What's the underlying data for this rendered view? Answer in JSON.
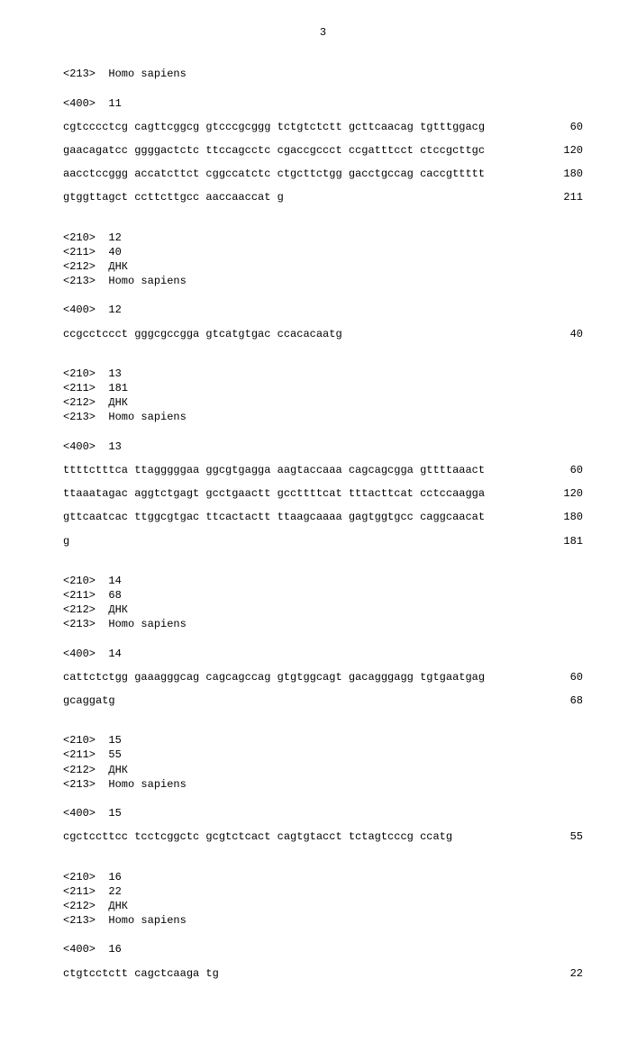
{
  "page_number": "3",
  "entries": [
    {
      "headers": [
        "<213>  Homo sapiens",
        "",
        "<400>  11"
      ],
      "sequence_lines": [
        {
          "seq": "cgtcccctcg cagttcggcg gtcccgcggg tctgtctctt gcttcaacag tgtttggacg",
          "pos": "60"
        },
        {
          "seq": "gaacagatcc ggggactctc ttccagcctc cgaccgccct ccgatttcct ctccgcttgc",
          "pos": "120"
        },
        {
          "seq": "aacctccggg accatcttct cggccatctc ctgcttctgg gacctgccag caccgttttt",
          "pos": "180"
        },
        {
          "seq": "gtggttagct ccttcttgcc aaccaaccat g",
          "pos": "211"
        }
      ]
    },
    {
      "headers": [
        "<210>  12",
        "<211>  40",
        "<212>  ДНК",
        "<213>  Homo sapiens",
        "",
        "<400>  12"
      ],
      "sequence_lines": [
        {
          "seq": "ccgcctccct gggcgccgga gtcatgtgac ccacacaatg",
          "pos": "40"
        }
      ]
    },
    {
      "headers": [
        "<210>  13",
        "<211>  181",
        "<212>  ДНК",
        "<213>  Homo sapiens",
        "",
        "<400>  13"
      ],
      "sequence_lines": [
        {
          "seq": "ttttctttca ttagggggaa ggcgtgagga aagtaccaaa cagcagcgga gttttaaact",
          "pos": "60"
        },
        {
          "seq": "ttaaatagac aggtctgagt gcctgaactt gccttttcat tttacttcat cctccaagga",
          "pos": "120"
        },
        {
          "seq": "gttcaatcac ttggcgtgac ttcactactt ttaagcaaaa gagtggtgcc caggcaacat",
          "pos": "180"
        },
        {
          "seq": "g",
          "pos": "181"
        }
      ]
    },
    {
      "headers": [
        "<210>  14",
        "<211>  68",
        "<212>  ДНК",
        "<213>  Homo sapiens",
        "",
        "<400>  14"
      ],
      "sequence_lines": [
        {
          "seq": "cattctctgg gaaagggcag cagcagccag gtgtggcagt gacagggagg tgtgaatgag",
          "pos": "60"
        },
        {
          "seq": "gcaggatg",
          "pos": "68"
        }
      ]
    },
    {
      "headers": [
        "<210>  15",
        "<211>  55",
        "<212>  ДНК",
        "<213>  Homo sapiens",
        "",
        "<400>  15"
      ],
      "sequence_lines": [
        {
          "seq": "cgctccttcc tcctcggctc gcgtctcact cagtgtacct tctagtcccg ccatg",
          "pos": "55"
        }
      ]
    },
    {
      "headers": [
        "<210>  16",
        "<211>  22",
        "<212>  ДНК",
        "<213>  Homo sapiens",
        "",
        "<400>  16"
      ],
      "sequence_lines": [
        {
          "seq": "ctgtcctctt cagctcaaga tg",
          "pos": "22"
        }
      ]
    }
  ]
}
